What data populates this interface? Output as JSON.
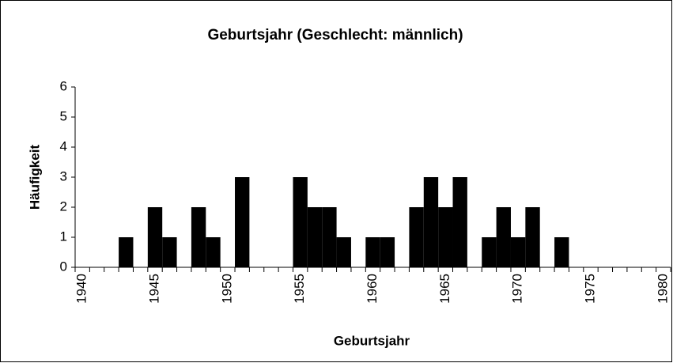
{
  "chart_data": {
    "type": "bar",
    "title": "Geburtsjahr (Geschlecht: männlich)",
    "x_label": "Geburtsjahr",
    "y_label": "Häufigkeit",
    "categories": [
      "1940",
      null,
      null,
      null,
      null,
      "1945",
      null,
      null,
      null,
      null,
      "1950",
      null,
      null,
      null,
      null,
      "1955",
      null,
      null,
      null,
      null,
      "1960",
      null,
      null,
      null,
      null,
      "1965",
      null,
      null,
      null,
      null,
      "1970",
      null,
      null,
      null,
      null,
      "1975",
      null,
      null,
      null,
      null,
      "1980"
    ],
    "values": [
      0,
      0,
      0,
      1,
      0,
      2,
      1,
      0,
      2,
      1,
      0,
      3,
      0,
      0,
      0,
      3,
      2,
      2,
      1,
      0,
      1,
      1,
      0,
      2,
      3,
      2,
      3,
      0,
      1,
      2,
      1,
      2,
      0,
      1,
      0,
      0,
      0,
      0,
      0,
      0,
      0
    ],
    "color": "#000000",
    "ylim": [
      0,
      6
    ],
    "yticks": [
      0,
      1,
      2,
      3,
      4,
      5,
      6
    ],
    "grid": false
  }
}
